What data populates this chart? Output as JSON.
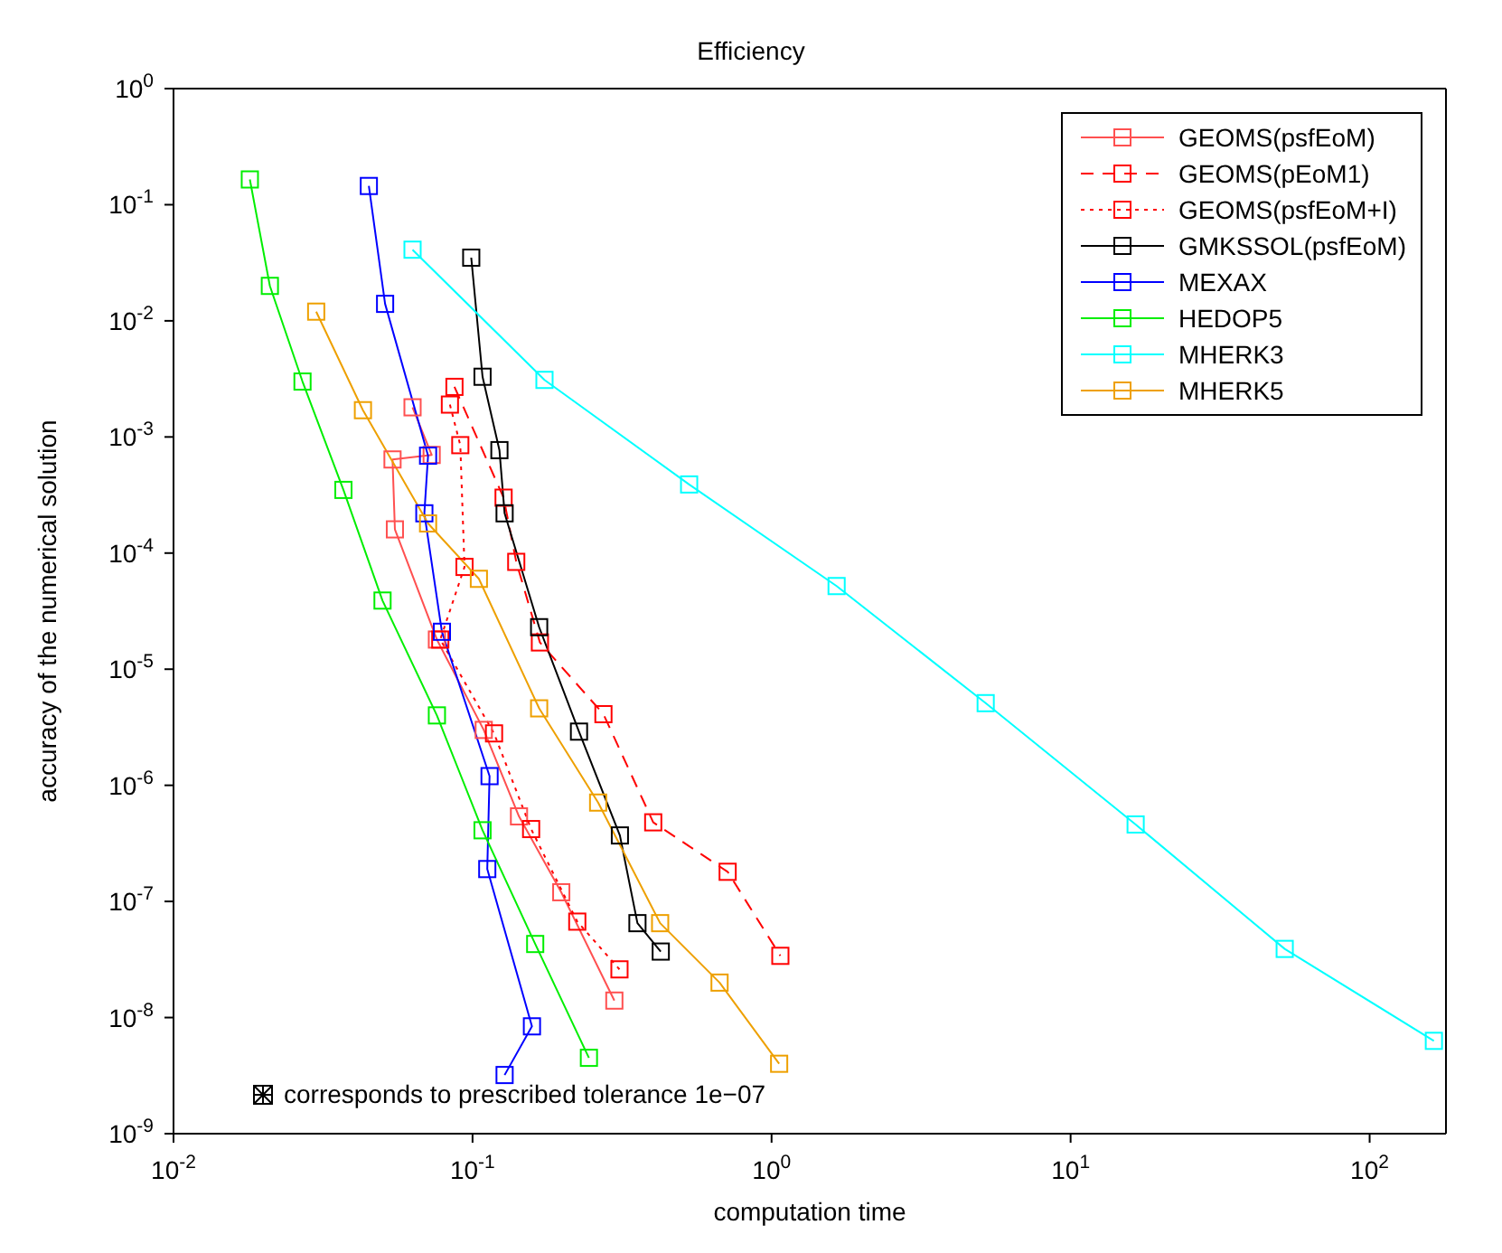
{
  "chart_data": {
    "type": "line",
    "title": "Efficiency",
    "xlabel": "computation time",
    "ylabel": "accuracy of the numerical solution",
    "log": "xy",
    "marker": "square",
    "legend": "top right",
    "grid": false,
    "xlim": [
      0.01,
      180
    ],
    "ylim": [
      1e-09,
      1
    ],
    "xticks": [
      {
        "value": 0.01,
        "label": "10$^{-2}$"
      },
      {
        "value": 0.1,
        "label": "10$^{-1}$"
      },
      {
        "value": 1,
        "label": "10$^{0}$"
      },
      {
        "value": 10,
        "label": "10$^{1}$"
      },
      {
        "value": 100,
        "label": "10$^{2}$"
      }
    ],
    "yticks": [
      {
        "value": 1e-09,
        "label": "10$^{-9}$"
      },
      {
        "value": 1e-08,
        "label": "10$^{-8}$"
      },
      {
        "value": 1e-07,
        "label": "10$^{-7}$"
      },
      {
        "value": 1e-06,
        "label": "10$^{-6}$"
      },
      {
        "value": 1e-05,
        "label": "10$^{-5}$"
      },
      {
        "value": 0.0001,
        "label": "10$^{-4}$"
      },
      {
        "value": 0.001,
        "label": "10$^{-3}$"
      },
      {
        "value": 0.01,
        "label": "10$^{-2}$"
      },
      {
        "value": 0.1,
        "label": "10$^{-1}$"
      },
      {
        "value": 1,
        "label": "10$^{0}$"
      }
    ],
    "annotations": [
      "corresponds to prescribed tolerance 1e−07"
    ],
    "series": [
      {
        "name": "GEOMS(psfEoM)",
        "color": "#ff5050",
        "line_style": "solid",
        "x": [
          0.063,
          0.073,
          0.054,
          0.055,
          0.076,
          0.109,
          0.143,
          0.198,
          0.298
        ],
        "values": [
          0.0018,
          0.0007,
          0.00064,
          0.00016,
          1.8e-05,
          3e-06,
          5.4e-07,
          1.2e-07,
          1.4e-08
        ]
      },
      {
        "name": "GEOMS(pEoM1)",
        "color": "#ff0000",
        "line_style": "dashed",
        "x": [
          0.087,
          0.127,
          0.14,
          0.168,
          0.274,
          0.402,
          0.713,
          1.07
        ],
        "values": [
          0.0027,
          0.0003,
          8.4e-05,
          1.7e-05,
          4.1e-06,
          4.8e-07,
          1.8e-07,
          3.4e-08
        ]
      },
      {
        "name": "GEOMS(psfEoM+I)",
        "color": "#ff0000",
        "line_style": "dotted",
        "x": [
          0.084,
          0.091,
          0.094,
          0.078,
          0.118,
          0.157,
          0.224,
          0.31
        ],
        "values": [
          0.0019,
          0.00085,
          7.6e-05,
          1.8e-05,
          2.8e-06,
          4.2e-07,
          6.7e-08,
          2.6e-08
        ]
      },
      {
        "name": "GMKSSOL(psfEoM)",
        "color": "#000000",
        "line_style": "solid",
        "x": [
          0.099,
          0.108,
          0.123,
          0.128,
          0.167,
          0.227,
          0.311,
          0.356,
          0.426
        ],
        "values": [
          0.035,
          0.0033,
          0.00077,
          0.00022,
          2.3e-05,
          2.9e-06,
          3.7e-07,
          6.5e-08,
          3.7e-08
        ]
      },
      {
        "name": "MEXAX",
        "color": "#0000ff",
        "line_style": "solid",
        "x": [
          0.045,
          0.051,
          0.071,
          0.069,
          0.079,
          0.114,
          0.112,
          0.158,
          0.128
        ],
        "values": [
          0.145,
          0.014,
          0.00069,
          0.00022,
          2.1e-05,
          1.2e-06,
          1.9e-07,
          8.4e-09,
          3.2e-09
        ]
      },
      {
        "name": "HEDOP5",
        "color": "#00ee00",
        "line_style": "solid",
        "x": [
          0.018,
          0.021,
          0.027,
          0.037,
          0.05,
          0.076,
          0.108,
          0.162,
          0.245
        ],
        "values": [
          0.165,
          0.02,
          0.003,
          0.00035,
          3.9e-05,
          4e-06,
          4.1e-07,
          4.3e-08,
          4.5e-09
        ]
      },
      {
        "name": "MHERK3",
        "color": "#00ffff",
        "line_style": "solid",
        "x": [
          0.063,
          0.174,
          0.53,
          1.65,
          5.2,
          16.5,
          52,
          164
        ],
        "values": [
          0.041,
          0.0031,
          0.00039,
          5.2e-05,
          5.1e-06,
          4.6e-07,
          3.9e-08,
          6.3e-09
        ]
      },
      {
        "name": "MHERK5",
        "color": "#eea000",
        "line_style": "solid",
        "x": [
          0.03,
          0.043,
          0.071,
          0.105,
          0.167,
          0.263,
          0.424,
          0.67,
          1.06
        ],
        "values": [
          0.012,
          0.0017,
          0.00018,
          6e-05,
          4.6e-06,
          7.1e-07,
          6.5e-08,
          2e-08,
          4e-09
        ]
      }
    ]
  }
}
